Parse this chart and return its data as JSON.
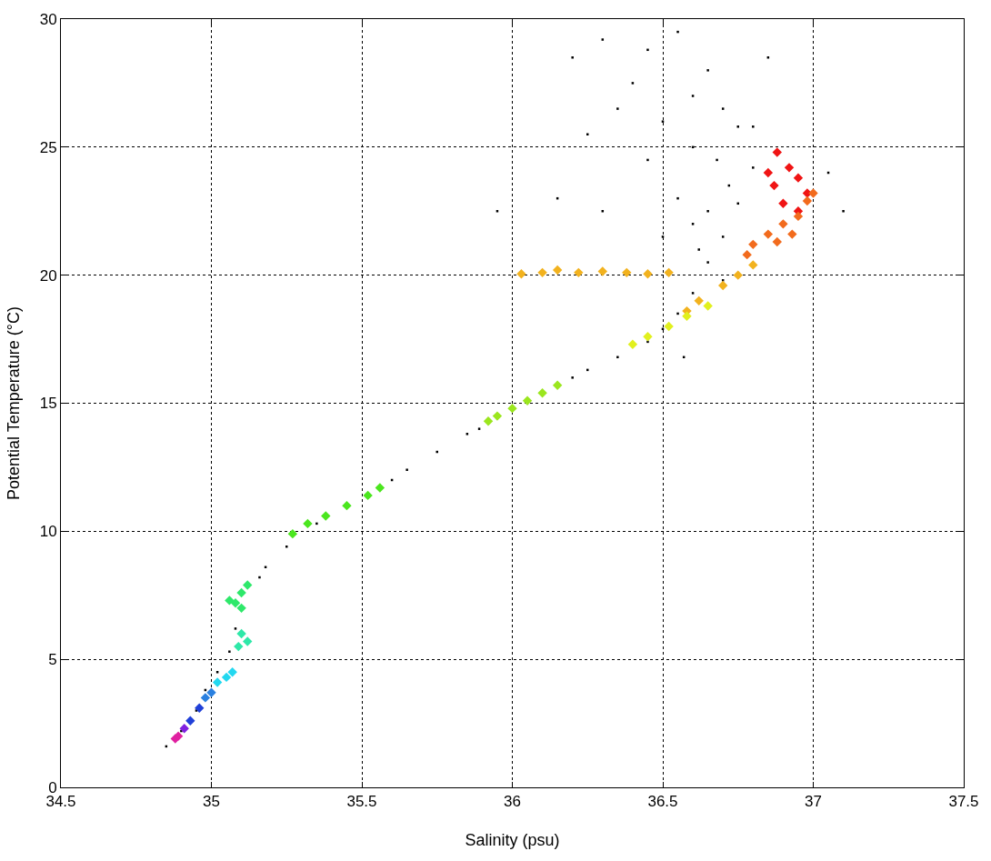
{
  "chart_data": {
    "type": "scatter",
    "xlabel": "Salinity (psu)",
    "ylabel": "Potential Temperature (°C)",
    "xlim": [
      34.5,
      37.5
    ],
    "ylim": [
      0,
      30
    ],
    "xticks": [
      34.5,
      35,
      35.5,
      36,
      36.5,
      37,
      37.5
    ],
    "yticks": [
      0,
      5,
      10,
      15,
      20,
      25,
      30
    ],
    "grid": true,
    "series": [
      {
        "color": "#000000",
        "marker": "square",
        "x": [
          34.85,
          34.9,
          34.95,
          34.98,
          35.02,
          35.06,
          35.08,
          35.16,
          35.18,
          35.25,
          35.35,
          35.6,
          35.65,
          35.75,
          35.85,
          35.89,
          36.2,
          36.25,
          36.35,
          36.45,
          36.5,
          36.55,
          36.6,
          36.65,
          36.7,
          36.65,
          36.72,
          36.68,
          36.6,
          36.75,
          36.62,
          36.7,
          36.3,
          36.2,
          36.45,
          36.55,
          36.4,
          36.6,
          36.5,
          36.35,
          36.7,
          36.25,
          36.6,
          36.8,
          36.45,
          36.55,
          36.8,
          36.5,
          36.15,
          36.3,
          35.95,
          36.65,
          36.85,
          37.1,
          37.05,
          36.57,
          36.75
        ],
        "values": [
          1.6,
          2.2,
          3.0,
          3.8,
          4.5,
          5.3,
          6.2,
          8.2,
          8.6,
          9.4,
          10.3,
          12.0,
          12.4,
          13.1,
          13.8,
          14.0,
          16.0,
          16.3,
          16.8,
          17.4,
          17.9,
          18.5,
          19.3,
          20.5,
          21.5,
          22.5,
          23.5,
          24.5,
          22,
          22.8,
          21,
          19.8,
          29.2,
          28.5,
          28.8,
          29.5,
          27.5,
          27,
          26,
          26.5,
          26.5,
          25.5,
          25,
          25.8,
          24.5,
          23,
          24.2,
          21.5,
          23,
          22.5,
          22.5,
          28,
          28.5,
          22.5,
          24,
          16.8,
          25.8
        ]
      },
      {
        "color": "#f01414",
        "marker": "diamond",
        "x": [
          36.88,
          36.92,
          36.87,
          36.95,
          36.9,
          36.98,
          36.85,
          36.95
        ],
        "values": [
          24.8,
          24.2,
          23.5,
          23.8,
          22.8,
          23.2,
          24,
          22.5
        ]
      },
      {
        "color": "#f26b1d",
        "marker": "diamond",
        "x": [
          36.8,
          36.85,
          36.9,
          36.95,
          36.98,
          37.0,
          36.93,
          36.78,
          36.88
        ],
        "values": [
          21.2,
          21.6,
          22,
          22.3,
          22.9,
          23.2,
          21.6,
          20.8,
          21.3
        ]
      },
      {
        "color": "#f2b21e",
        "marker": "diamond",
        "x": [
          36.62,
          36.7,
          36.75,
          36.8,
          36.58,
          36.03,
          36.1,
          36.15,
          36.22,
          36.3,
          36.38,
          36.45,
          36.52
        ],
        "values": [
          19.0,
          19.6,
          20.0,
          20.4,
          18.6,
          20.05,
          20.1,
          20.2,
          20.1,
          20.15,
          20.1,
          20.05,
          20.1
        ]
      },
      {
        "color": "#e1f01e",
        "marker": "diamond",
        "x": [
          36.45,
          36.52,
          36.58,
          36.65,
          36.4
        ],
        "values": [
          17.6,
          18.0,
          18.4,
          18.8,
          17.3
        ]
      },
      {
        "color": "#9be61e",
        "marker": "diamond",
        "x": [
          35.95,
          36.0,
          36.05,
          36.1,
          36.15,
          35.92
        ],
        "values": [
          14.5,
          14.8,
          15.1,
          15.4,
          15.7,
          14.3
        ]
      },
      {
        "color": "#4be61e",
        "marker": "diamond",
        "x": [
          35.27,
          35.32,
          35.38,
          35.45,
          35.52,
          35.56
        ],
        "values": [
          9.9,
          10.3,
          10.6,
          11.0,
          11.4,
          11.7
        ]
      },
      {
        "color": "#2ee86a",
        "marker": "diamond",
        "x": [
          35.08,
          35.1,
          35.12,
          35.06,
          35.1
        ],
        "values": [
          7.2,
          7.6,
          7.9,
          7.3,
          7.0
        ]
      },
      {
        "color": "#2ee8a8",
        "marker": "diamond",
        "x": [
          35.1,
          35.12,
          35.09
        ],
        "values": [
          6.0,
          5.7,
          5.5
        ]
      },
      {
        "color": "#22d8f0",
        "marker": "diamond",
        "x": [
          35.02,
          35.05,
          35.07
        ],
        "values": [
          4.1,
          4.3,
          4.5
        ]
      },
      {
        "color": "#2a80e0",
        "marker": "diamond",
        "x": [
          34.98,
          35.0
        ],
        "values": [
          3.5,
          3.7
        ]
      },
      {
        "color": "#2040d8",
        "marker": "diamond",
        "x": [
          34.96,
          34.93
        ],
        "values": [
          3.1,
          2.6
        ]
      },
      {
        "color": "#8020e0",
        "marker": "diamond",
        "x": [
          34.91
        ],
        "values": [
          2.3
        ]
      },
      {
        "color": "#e020a0",
        "marker": "diamond",
        "x": [
          34.88,
          34.89
        ],
        "values": [
          1.9,
          2.0
        ]
      }
    ]
  }
}
